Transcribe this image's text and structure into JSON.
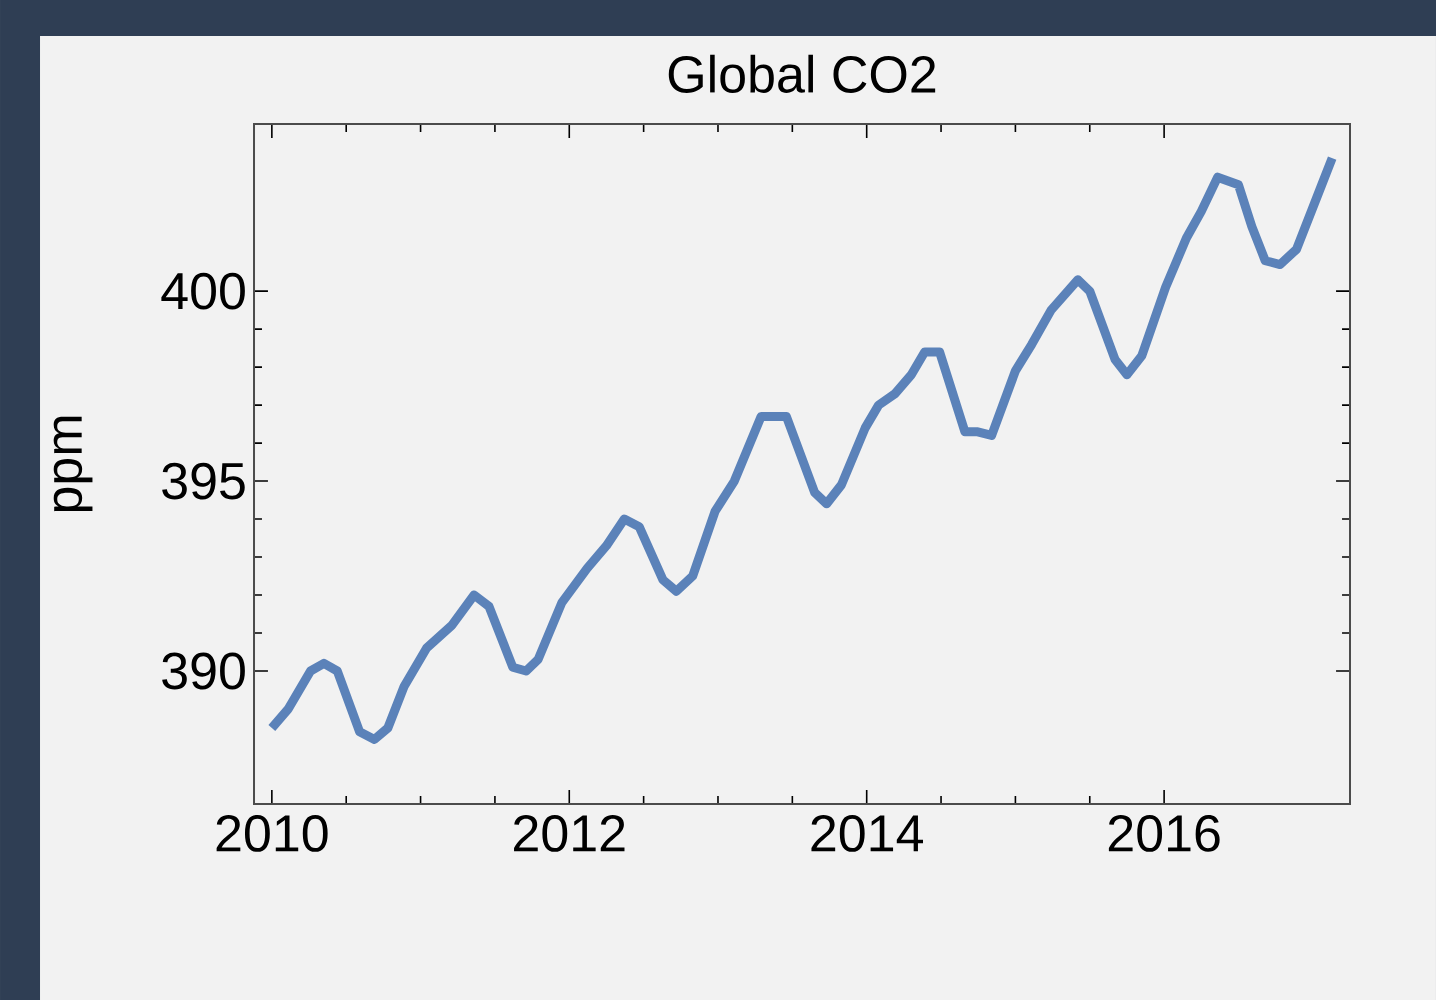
{
  "chart_data": {
    "type": "line",
    "title": "Global CO2",
    "ylabel": "ppm",
    "x": [
      2010.0,
      2010.11,
      2010.26,
      2010.35,
      2010.44,
      2010.59,
      2010.69,
      2010.78,
      2010.89,
      2011.04,
      2011.21,
      2011.36,
      2011.46,
      2011.62,
      2011.71,
      2011.79,
      2011.95,
      2012.12,
      2012.25,
      2012.37,
      2012.47,
      2012.63,
      2012.72,
      2012.83,
      2012.98,
      2013.11,
      2013.29,
      2013.46,
      2013.65,
      2013.73,
      2013.83,
      2013.99,
      2014.08,
      2014.19,
      2014.3,
      2014.39,
      2014.49,
      2014.66,
      2014.74,
      2014.84,
      2015.0,
      2015.11,
      2015.24,
      2015.42,
      2015.5,
      2015.67,
      2015.75,
      2015.85,
      2016.01,
      2016.15,
      2016.25,
      2016.36,
      2016.5,
      2016.59,
      2016.68,
      2016.78,
      2016.89,
      2017.06,
      2017.13
    ],
    "series": [
      {
        "color": "#5b82b9",
        "values": [
          388.5,
          389.0,
          390.0,
          390.2,
          390.0,
          388.4,
          388.2,
          388.5,
          389.6,
          390.6,
          391.2,
          392.0,
          391.7,
          390.1,
          390.0,
          390.3,
          391.8,
          392.7,
          393.3,
          394.0,
          393.8,
          392.4,
          392.1,
          392.5,
          394.2,
          395.0,
          396.7,
          396.7,
          394.7,
          394.4,
          394.9,
          396.4,
          397.0,
          397.3,
          397.8,
          398.4,
          398.4,
          396.3,
          396.3,
          396.2,
          397.9,
          398.6,
          399.5,
          400.3,
          400.0,
          398.2,
          397.8,
          398.3,
          400.1,
          401.4,
          402.1,
          403.0,
          402.8,
          401.7,
          400.8,
          400.7,
          401.1,
          402.8,
          403.5
        ]
      }
    ],
    "xlim": [
      2009.88,
      2017.25
    ],
    "ylim": [
      386.5,
      404.4
    ],
    "xticks": [
      2010,
      2012,
      2014,
      2016
    ],
    "yticks": [
      390,
      395,
      400
    ],
    "marker": "none",
    "line_style": "solid"
  }
}
